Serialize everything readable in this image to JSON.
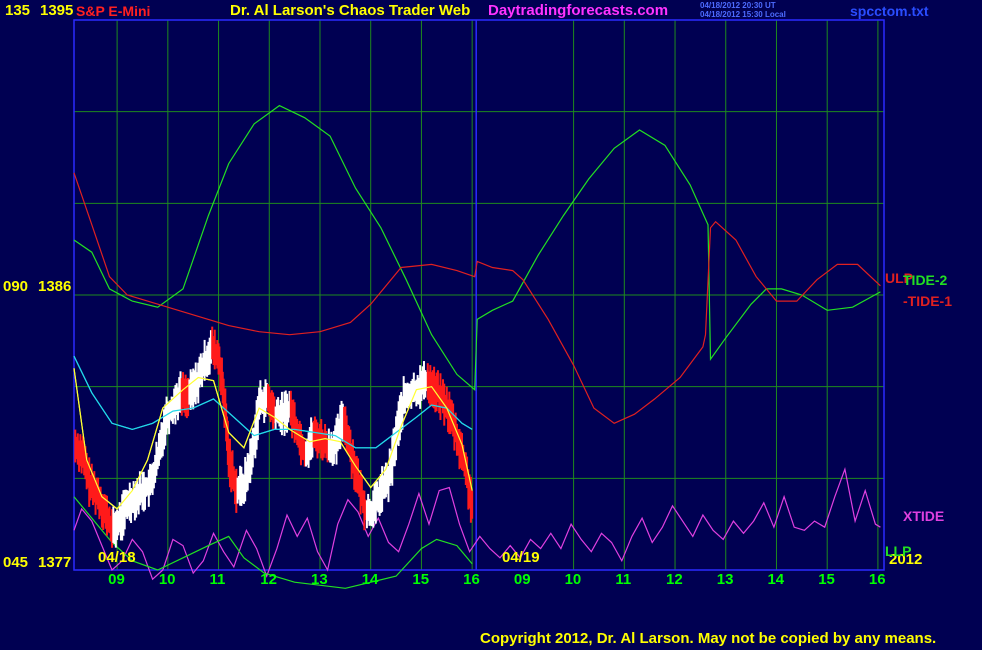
{
  "header": {
    "symbol_title": "S&P E-Mini",
    "chart_title": "Dr. Al Larson's Chaos Trader Web",
    "site": "Daytradingforecasts.com",
    "timestamp_ut": "04/18/2012 20:30 UT",
    "timestamp_local": "04/18/2012 15:30 Local",
    "filename": "spcctom.txt"
  },
  "footer": {
    "copyright": "Copyright 2012, Dr. Al Larson. May not be copied by any means."
  },
  "y_labels": {
    "top_angle": "135",
    "top_price": "1395",
    "mid_angle": "090",
    "mid_price": "1386",
    "bottom_angle": "045",
    "bottom_price": "1377"
  },
  "date_labels": {
    "day1": "04/18",
    "day2": "04/19",
    "year": "2012"
  },
  "x_ticks": [
    "09",
    "10",
    "11",
    "12",
    "13",
    "14",
    "15",
    "16",
    "09",
    "10",
    "11",
    "12",
    "13",
    "14",
    "15",
    "16"
  ],
  "series_labels": {
    "ulp": "ULP",
    "tide2": "TIDE-2",
    "tide1": "-TIDE-1",
    "xtide": "XTIDE",
    "llp": "LLP"
  },
  "colors": {
    "background": "#000052",
    "grid": "#1e8a1e",
    "axis": "#2a2aff",
    "price_up": "#ffffff",
    "price_down": "#ff1a1a",
    "tide_green": "#22e022",
    "tide_red": "#e02020",
    "xtide": "#e040e0",
    "ma_fast": "#ffff33",
    "ma_slow": "#22d8e8",
    "title_red": "#ff2020",
    "title_yellow": "#ffff00",
    "site_magenta": "#ff33ff",
    "green_text": "#00ff00"
  },
  "chart_data": {
    "type": "line",
    "ylim": [
      1377,
      1395
    ],
    "xlim": [
      8.15,
      24.12
    ],
    "hour_ticks": [
      9,
      10,
      11,
      12,
      13,
      14,
      15,
      16,
      17,
      18,
      19,
      20,
      21,
      22,
      23,
      24
    ],
    "series": [
      {
        "name": "TIDE-2",
        "color": "#22e022",
        "points": [
          [
            8.15,
            1387.8
          ],
          [
            8.5,
            1387.4
          ],
          [
            8.85,
            1386.2
          ],
          [
            9.3,
            1385.8
          ],
          [
            9.8,
            1385.6
          ],
          [
            10.3,
            1386.2
          ],
          [
            10.8,
            1388.6
          ],
          [
            11.2,
            1390.3
          ],
          [
            11.7,
            1391.6
          ],
          [
            12.2,
            1392.2
          ],
          [
            12.7,
            1391.8
          ],
          [
            13.2,
            1391.2
          ],
          [
            13.7,
            1389.5
          ],
          [
            14.2,
            1388.2
          ],
          [
            14.7,
            1386.5
          ],
          [
            15.2,
            1384.7
          ],
          [
            15.7,
            1383.4
          ],
          [
            16.05,
            1382.9
          ],
          [
            16.1,
            1385.2
          ],
          [
            16.4,
            1385.5
          ],
          [
            16.8,
            1385.8
          ],
          [
            17.3,
            1387.3
          ],
          [
            17.8,
            1388.6
          ],
          [
            18.3,
            1389.8
          ],
          [
            18.8,
            1390.8
          ],
          [
            19.3,
            1391.4
          ],
          [
            19.8,
            1390.9
          ],
          [
            20.3,
            1389.6
          ],
          [
            20.65,
            1388.3
          ],
          [
            20.7,
            1383.9
          ],
          [
            21.0,
            1384.6
          ],
          [
            21.5,
            1385.7
          ],
          [
            21.8,
            1386.2
          ],
          [
            22.1,
            1386.2
          ],
          [
            22.5,
            1386.0
          ],
          [
            23.0,
            1385.5
          ],
          [
            23.5,
            1385.6
          ],
          [
            24.05,
            1386.1
          ]
        ]
      },
      {
        "name": "TIDE-1",
        "color": "#e02020",
        "points": [
          [
            8.15,
            1390.0
          ],
          [
            8.5,
            1388.3
          ],
          [
            8.85,
            1386.6
          ],
          [
            9.2,
            1386.0
          ],
          [
            9.6,
            1385.8
          ],
          [
            10.0,
            1385.6
          ],
          [
            10.4,
            1385.4
          ],
          [
            10.8,
            1385.2
          ],
          [
            11.2,
            1385.0
          ],
          [
            11.8,
            1384.8
          ],
          [
            12.4,
            1384.7
          ],
          [
            13.0,
            1384.8
          ],
          [
            13.6,
            1385.1
          ],
          [
            14.0,
            1385.7
          ],
          [
            14.6,
            1386.9
          ],
          [
            15.2,
            1387.0
          ],
          [
            15.7,
            1386.8
          ],
          [
            16.05,
            1386.6
          ],
          [
            16.1,
            1387.1
          ],
          [
            16.4,
            1386.9
          ],
          [
            16.8,
            1386.8
          ],
          [
            17.0,
            1386.5
          ],
          [
            17.5,
            1385.2
          ],
          [
            18.0,
            1383.7
          ],
          [
            18.4,
            1382.3
          ],
          [
            18.8,
            1381.8
          ],
          [
            19.2,
            1382.1
          ],
          [
            19.6,
            1382.6
          ],
          [
            20.1,
            1383.3
          ],
          [
            20.55,
            1384.3
          ],
          [
            20.6,
            1384.7
          ],
          [
            20.7,
            1388.2
          ],
          [
            20.8,
            1388.4
          ],
          [
            21.2,
            1387.8
          ],
          [
            21.6,
            1386.6
          ],
          [
            22.0,
            1385.8
          ],
          [
            22.4,
            1385.8
          ],
          [
            22.8,
            1386.5
          ],
          [
            23.2,
            1387.0
          ],
          [
            23.6,
            1387.0
          ],
          [
            24.05,
            1386.3
          ]
        ]
      },
      {
        "name": "XTIDE",
        "color": "#e040e0",
        "points": [
          [
            8.15,
            1378.3
          ],
          [
            8.3,
            1379.0
          ],
          [
            8.5,
            1378.6
          ],
          [
            8.7,
            1377.8
          ],
          [
            8.9,
            1377.0
          ],
          [
            9.1,
            1377.3
          ],
          [
            9.3,
            1378.0
          ],
          [
            9.5,
            1377.6
          ],
          [
            9.7,
            1376.7
          ],
          [
            9.9,
            1377.0
          ],
          [
            10.1,
            1378.0
          ],
          [
            10.3,
            1377.8
          ],
          [
            10.5,
            1376.9
          ],
          [
            10.7,
            1377.3
          ],
          [
            10.9,
            1378.2
          ],
          [
            11.1,
            1377.6
          ],
          [
            11.3,
            1377.1
          ],
          [
            11.55,
            1378.3
          ],
          [
            11.75,
            1377.7
          ],
          [
            11.95,
            1376.8
          ],
          [
            12.15,
            1377.7
          ],
          [
            12.35,
            1378.8
          ],
          [
            12.55,
            1378.1
          ],
          [
            12.75,
            1378.7
          ],
          [
            12.95,
            1377.6
          ],
          [
            13.15,
            1377.0
          ],
          [
            13.35,
            1378.5
          ],
          [
            13.55,
            1379.3
          ],
          [
            13.75,
            1378.9
          ],
          [
            13.95,
            1378.1
          ],
          [
            14.15,
            1378.7
          ],
          [
            14.35,
            1377.9
          ],
          [
            14.55,
            1377.6
          ],
          [
            14.75,
            1378.5
          ],
          [
            14.95,
            1379.5
          ],
          [
            15.15,
            1378.5
          ],
          [
            15.35,
            1379.6
          ],
          [
            15.55,
            1379.7
          ],
          [
            15.75,
            1378.5
          ],
          [
            15.95,
            1377.6
          ],
          [
            16.15,
            1378.1
          ],
          [
            16.35,
            1377.7
          ],
          [
            16.55,
            1377.4
          ],
          [
            16.75,
            1377.8
          ],
          [
            16.95,
            1377.4
          ],
          [
            17.15,
            1378.0
          ],
          [
            17.35,
            1377.7
          ],
          [
            17.55,
            1378.2
          ],
          [
            17.75,
            1377.7
          ],
          [
            17.95,
            1378.5
          ],
          [
            18.15,
            1378.0
          ],
          [
            18.35,
            1377.6
          ],
          [
            18.55,
            1378.2
          ],
          [
            18.75,
            1377.9
          ],
          [
            18.95,
            1377.3
          ],
          [
            19.15,
            1378.1
          ],
          [
            19.35,
            1378.7
          ],
          [
            19.55,
            1377.9
          ],
          [
            19.75,
            1378.4
          ],
          [
            19.95,
            1379.1
          ],
          [
            20.15,
            1378.6
          ],
          [
            20.35,
            1378.1
          ],
          [
            20.55,
            1378.8
          ],
          [
            20.75,
            1378.3
          ],
          [
            20.95,
            1378.0
          ],
          [
            21.15,
            1378.6
          ],
          [
            21.35,
            1378.2
          ],
          [
            21.55,
            1378.6
          ],
          [
            21.75,
            1379.2
          ],
          [
            21.95,
            1378.4
          ],
          [
            22.15,
            1379.4
          ],
          [
            22.35,
            1378.4
          ],
          [
            22.55,
            1378.3
          ],
          [
            22.75,
            1378.6
          ],
          [
            22.95,
            1378.4
          ],
          [
            23.15,
            1379.4
          ],
          [
            23.35,
            1380.3
          ],
          [
            23.55,
            1378.6
          ],
          [
            23.75,
            1379.6
          ],
          [
            23.95,
            1378.5
          ],
          [
            24.05,
            1378.4
          ]
        ]
      },
      {
        "name": "LLP",
        "color": "#22e022",
        "points": [
          [
            8.15,
            1379.4
          ],
          [
            8.5,
            1378.7
          ],
          [
            8.9,
            1377.9
          ],
          [
            9.3,
            1377.3
          ],
          [
            9.8,
            1377.0
          ],
          [
            10.3,
            1377.4
          ],
          [
            10.8,
            1377.8
          ],
          [
            11.2,
            1378.1
          ],
          [
            11.5,
            1377.4
          ],
          [
            11.9,
            1376.9
          ],
          [
            12.5,
            1376.6
          ],
          [
            13.5,
            1376.4
          ],
          [
            14.5,
            1376.8
          ],
          [
            15.0,
            1377.7
          ],
          [
            15.3,
            1378.0
          ],
          [
            15.7,
            1377.8
          ],
          [
            16.0,
            1377.2
          ]
        ]
      },
      {
        "name": "MA-fast",
        "color": "#ffff33",
        "points": [
          [
            8.15,
            1383.6
          ],
          [
            8.4,
            1380.6
          ],
          [
            8.7,
            1379.4
          ],
          [
            9.0,
            1379.0
          ],
          [
            9.3,
            1379.6
          ],
          [
            9.6,
            1380.6
          ],
          [
            9.9,
            1382.3
          ],
          [
            10.3,
            1382.9
          ],
          [
            10.6,
            1383.3
          ],
          [
            10.9,
            1383.2
          ],
          [
            11.2,
            1381.5
          ],
          [
            11.5,
            1381.0
          ],
          [
            11.8,
            1382.3
          ],
          [
            12.1,
            1382.0
          ],
          [
            12.4,
            1381.6
          ],
          [
            12.8,
            1381.2
          ],
          [
            13.1,
            1381.3
          ],
          [
            13.4,
            1381.2
          ],
          [
            13.7,
            1380.4
          ],
          [
            14.0,
            1379.7
          ],
          [
            14.3,
            1380.3
          ],
          [
            14.6,
            1381.7
          ],
          [
            14.9,
            1382.9
          ],
          [
            15.2,
            1383.0
          ],
          [
            15.5,
            1382.3
          ],
          [
            15.8,
            1381.1
          ],
          [
            16.0,
            1379.6
          ]
        ]
      },
      {
        "name": "MA-slow",
        "color": "#22d8e8",
        "points": [
          [
            8.15,
            1384.0
          ],
          [
            8.5,
            1382.8
          ],
          [
            8.9,
            1381.8
          ],
          [
            9.3,
            1381.6
          ],
          [
            9.7,
            1381.8
          ],
          [
            10.1,
            1382.2
          ],
          [
            10.5,
            1382.3
          ],
          [
            10.9,
            1382.6
          ],
          [
            11.3,
            1382.0
          ],
          [
            11.7,
            1381.4
          ],
          [
            12.1,
            1381.6
          ],
          [
            12.5,
            1381.6
          ],
          [
            12.9,
            1381.5
          ],
          [
            13.3,
            1381.4
          ],
          [
            13.7,
            1381.0
          ],
          [
            14.1,
            1381.0
          ],
          [
            14.5,
            1381.5
          ],
          [
            14.9,
            1382.0
          ],
          [
            15.2,
            1382.4
          ],
          [
            15.5,
            1382.3
          ],
          [
            15.8,
            1381.8
          ],
          [
            16.0,
            1381.6
          ]
        ]
      },
      {
        "name": "Price",
        "color": "#ffffff",
        "points": [
          [
            8.15,
            1381.1
          ],
          [
            8.3,
            1380.8
          ],
          [
            8.45,
            1379.8
          ],
          [
            8.6,
            1379.5
          ],
          [
            8.75,
            1378.9
          ],
          [
            8.9,
            1378.3
          ],
          [
            9.05,
            1378.6
          ],
          [
            9.2,
            1379.2
          ],
          [
            9.35,
            1379.4
          ],
          [
            9.5,
            1379.6
          ],
          [
            9.65,
            1379.8
          ],
          [
            9.8,
            1380.7
          ],
          [
            9.95,
            1382.0
          ],
          [
            10.1,
            1382.4
          ],
          [
            10.25,
            1382.8
          ],
          [
            10.4,
            1382.7
          ],
          [
            10.55,
            1383.1
          ],
          [
            10.7,
            1383.7
          ],
          [
            10.85,
            1384.3
          ],
          [
            11.0,
            1383.9
          ],
          [
            11.1,
            1382.6
          ],
          [
            11.2,
            1380.6
          ],
          [
            11.35,
            1379.6
          ],
          [
            11.5,
            1379.8
          ],
          [
            11.65,
            1380.8
          ],
          [
            11.8,
            1382.5
          ],
          [
            11.95,
            1382.6
          ],
          [
            12.1,
            1382.1
          ],
          [
            12.25,
            1382.1
          ],
          [
            12.4,
            1382.3
          ],
          [
            12.55,
            1381.5
          ],
          [
            12.7,
            1380.8
          ],
          [
            12.85,
            1381.4
          ],
          [
            13.0,
            1381.3
          ],
          [
            13.15,
            1381.0
          ],
          [
            13.3,
            1381.1
          ],
          [
            13.45,
            1382.0
          ],
          [
            13.6,
            1380.9
          ],
          [
            13.75,
            1379.8
          ],
          [
            13.9,
            1378.9
          ],
          [
            14.05,
            1379.0
          ],
          [
            14.2,
            1379.6
          ],
          [
            14.35,
            1380.0
          ],
          [
            14.5,
            1381.5
          ],
          [
            14.65,
            1382.6
          ],
          [
            14.8,
            1382.8
          ],
          [
            14.95,
            1383.0
          ],
          [
            15.1,
            1383.2
          ],
          [
            15.25,
            1382.9
          ],
          [
            15.4,
            1382.6
          ],
          [
            15.55,
            1382.1
          ],
          [
            15.7,
            1381.3
          ],
          [
            15.85,
            1380.4
          ],
          [
            16.0,
            1379.0
          ]
        ]
      }
    ]
  }
}
